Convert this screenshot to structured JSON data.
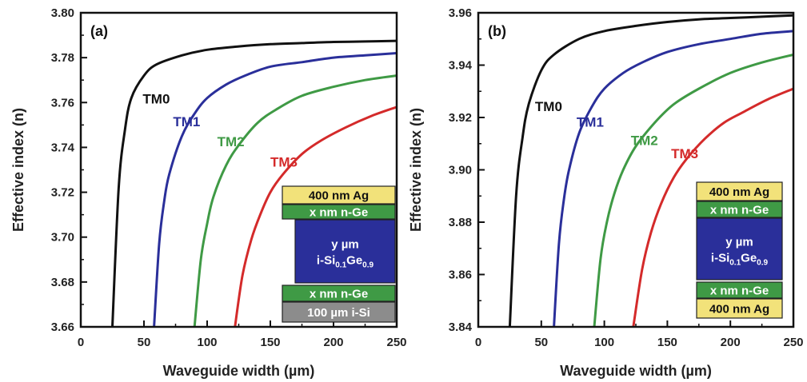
{
  "chart_data": [
    {
      "type": "line",
      "panel_label": "(a)",
      "xlabel": "Waveguide width (µm)",
      "ylabel": "Effective index (n)",
      "xlim": [
        0,
        250
      ],
      "ylim": [
        3.66,
        3.8
      ],
      "xticks": [
        0,
        50,
        100,
        150,
        200,
        250
      ],
      "xtick_labels": [
        "0",
        "50",
        "100",
        "150",
        "200",
        "250"
      ],
      "yticks": [
        3.66,
        3.68,
        3.7,
        3.72,
        3.74,
        3.76,
        3.78,
        3.8
      ],
      "ytick_labels": [
        "3.66",
        "3.68",
        "3.70",
        "3.72",
        "3.74",
        "3.76",
        "3.78",
        "3.80"
      ],
      "grid": false,
      "series": [
        {
          "name": "TM0",
          "color": "#111111",
          "x": [
            25,
            30,
            35,
            40,
            50,
            60,
            80,
            100,
            125,
            150,
            175,
            200,
            225,
            250
          ],
          "y": [
            3.66,
            3.722,
            3.748,
            3.762,
            3.772,
            3.777,
            3.781,
            3.7835,
            3.785,
            3.786,
            3.7865,
            3.787,
            3.7872,
            3.7875
          ]
        },
        {
          "name": "TM1",
          "color": "#2a2f9a",
          "x": [
            58,
            62,
            66,
            70,
            80,
            90,
            100,
            115,
            130,
            150,
            175,
            200,
            225,
            250
          ],
          "y": [
            3.66,
            3.697,
            3.716,
            3.728,
            3.745,
            3.755,
            3.762,
            3.768,
            3.772,
            3.776,
            3.778,
            3.78,
            3.781,
            3.782
          ]
        },
        {
          "name": "TM2",
          "color": "#3f9a45",
          "x": [
            90,
            95,
            100,
            105,
            115,
            125,
            140,
            155,
            175,
            200,
            225,
            250
          ],
          "y": [
            3.66,
            3.69,
            3.706,
            3.718,
            3.732,
            3.741,
            3.751,
            3.757,
            3.763,
            3.767,
            3.77,
            3.772
          ]
        },
        {
          "name": "TM3",
          "color": "#d42a2a",
          "x": [
            122,
            128,
            135,
            142,
            150,
            160,
            175,
            190,
            210,
            230,
            250
          ],
          "y": [
            3.66,
            3.683,
            3.699,
            3.71,
            3.72,
            3.728,
            3.737,
            3.743,
            3.749,
            3.754,
            3.758
          ]
        }
      ],
      "curve_labels": [
        {
          "text": "TM0",
          "color": "#111111",
          "x": 49,
          "y": 3.7595
        },
        {
          "text": "TM1",
          "color": "#2a2f9a",
          "x": 73,
          "y": 3.7495
        },
        {
          "text": "TM2",
          "color": "#3f9a45",
          "x": 108,
          "y": 3.7405
        },
        {
          "text": "TM3",
          "color": "#d42a2a",
          "x": 150,
          "y": 3.7315
        }
      ],
      "stack": [
        {
          "text": "400 nm Ag",
          "fill": "#f2e27a"
        },
        {
          "text": "x nm n-Ge",
          "fill": "#3f9a45",
          "color": "#ffffff"
        },
        {
          "text": "y µm",
          "text2": "i-Si",
          "sub1": "0.1",
          "mid": "Ge",
          "sub2": "0.9",
          "fill": "#2a2f9a",
          "color": "#ffffff"
        },
        {
          "text": "x nm n-Ge",
          "fill": "#3f9a45",
          "color": "#ffffff"
        },
        {
          "text": "100 µm i-Si",
          "fill": "#8c8c8c",
          "color": "#ffffff"
        }
      ]
    },
    {
      "type": "line",
      "panel_label": "(b)",
      "xlabel": "Waveguide width (µm)",
      "ylabel": "Effective index (n)",
      "xlim": [
        0,
        250
      ],
      "ylim": [
        3.84,
        3.96
      ],
      "xticks": [
        0,
        50,
        100,
        150,
        200,
        250
      ],
      "xtick_labels": [
        "0",
        "50",
        "100",
        "150",
        "200",
        "250"
      ],
      "yticks": [
        3.84,
        3.86,
        3.88,
        3.9,
        3.92,
        3.94,
        3.96
      ],
      "ytick_labels": [
        "3.84",
        "3.86",
        "3.88",
        "3.90",
        "3.92",
        "3.94",
        "3.96"
      ],
      "grid": false,
      "series": [
        {
          "name": "TM0",
          "color": "#111111",
          "x": [
            25,
            30,
            35,
            40,
            50,
            60,
            80,
            100,
            125,
            150,
            175,
            200,
            225,
            250
          ],
          "y": [
            3.84,
            3.89,
            3.912,
            3.925,
            3.938,
            3.944,
            3.95,
            3.953,
            3.955,
            3.9565,
            3.9575,
            3.958,
            3.9585,
            3.959
          ]
        },
        {
          "name": "TM1",
          "color": "#2a2f9a",
          "x": [
            60,
            64,
            68,
            72,
            80,
            90,
            100,
            115,
            130,
            150,
            175,
            200,
            225,
            250
          ],
          "y": [
            3.84,
            3.872,
            3.889,
            3.9,
            3.914,
            3.924,
            3.931,
            3.937,
            3.941,
            3.945,
            3.948,
            3.95,
            3.952,
            3.953
          ]
        },
        {
          "name": "TM2",
          "color": "#3f9a45",
          "x": [
            92,
            97,
            102,
            108,
            115,
            125,
            140,
            155,
            175,
            200,
            225,
            250
          ],
          "y": [
            3.84,
            3.866,
            3.88,
            3.891,
            3.9,
            3.909,
            3.918,
            3.925,
            3.931,
            3.937,
            3.941,
            3.944
          ]
        },
        {
          "name": "TM3",
          "color": "#d42a2a",
          "x": [
            123,
            130,
            137,
            145,
            155,
            165,
            180,
            195,
            210,
            230,
            250
          ],
          "y": [
            3.84,
            3.862,
            3.876,
            3.887,
            3.897,
            3.904,
            3.912,
            3.918,
            3.922,
            3.927,
            3.931
          ]
        }
      ],
      "curve_labels": [
        {
          "text": "TM0",
          "color": "#111111",
          "x": 45,
          "y": 3.9225
        },
        {
          "text": "TM1",
          "color": "#2a2f9a",
          "x": 78,
          "y": 3.9165
        },
        {
          "text": "TM2",
          "color": "#3f9a45",
          "x": 121,
          "y": 3.9095
        },
        {
          "text": "TM3",
          "color": "#d42a2a",
          "x": 153,
          "y": 3.9045
        }
      ],
      "stack": [
        {
          "text": "400 nm Ag",
          "fill": "#f2e27a"
        },
        {
          "text": "x nm n-Ge",
          "fill": "#3f9a45",
          "color": "#ffffff"
        },
        {
          "text": "y µm",
          "text2": "i-Si",
          "sub1": "0.1",
          "mid": "Ge",
          "sub2": "0.9",
          "fill": "#2a2f9a",
          "color": "#ffffff"
        },
        {
          "text": "x nm n-Ge",
          "fill": "#3f9a45",
          "color": "#ffffff"
        },
        {
          "text": "400 nm Ag",
          "fill": "#f2e27a"
        }
      ]
    }
  ]
}
